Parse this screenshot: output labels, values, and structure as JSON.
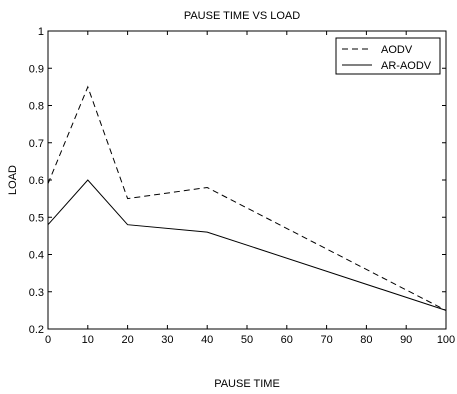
{
  "chart_data": {
    "type": "line",
    "title": "PAUSE TIME VS LOAD",
    "xlabel": "PAUSE TIME",
    "ylabel": "LOAD",
    "xlim": [
      0,
      100
    ],
    "ylim": [
      0.2,
      1
    ],
    "xticks": [
      0,
      10,
      20,
      30,
      40,
      50,
      60,
      70,
      80,
      90,
      100
    ],
    "yticks": [
      0.2,
      0.3,
      0.4,
      0.5,
      0.6,
      0.7,
      0.8,
      0.9,
      1
    ],
    "ytick_labels": [
      "0.2",
      "0.3",
      "0.4",
      "0.5",
      "0.6",
      "0.7",
      "0.8",
      "0.9",
      "1"
    ],
    "grid": false,
    "legend_position": "top-right",
    "series": [
      {
        "name": "AODV",
        "style": "dashed",
        "color": "#000000",
        "x": [
          0,
          10,
          20,
          40,
          100
        ],
        "y": [
          0.59,
          0.85,
          0.55,
          0.58,
          0.25
        ]
      },
      {
        "name": "AR-AODV",
        "style": "solid",
        "color": "#000000",
        "x": [
          0,
          10,
          20,
          40,
          100
        ],
        "y": [
          0.48,
          0.6,
          0.48,
          0.46,
          0.25
        ]
      }
    ]
  }
}
